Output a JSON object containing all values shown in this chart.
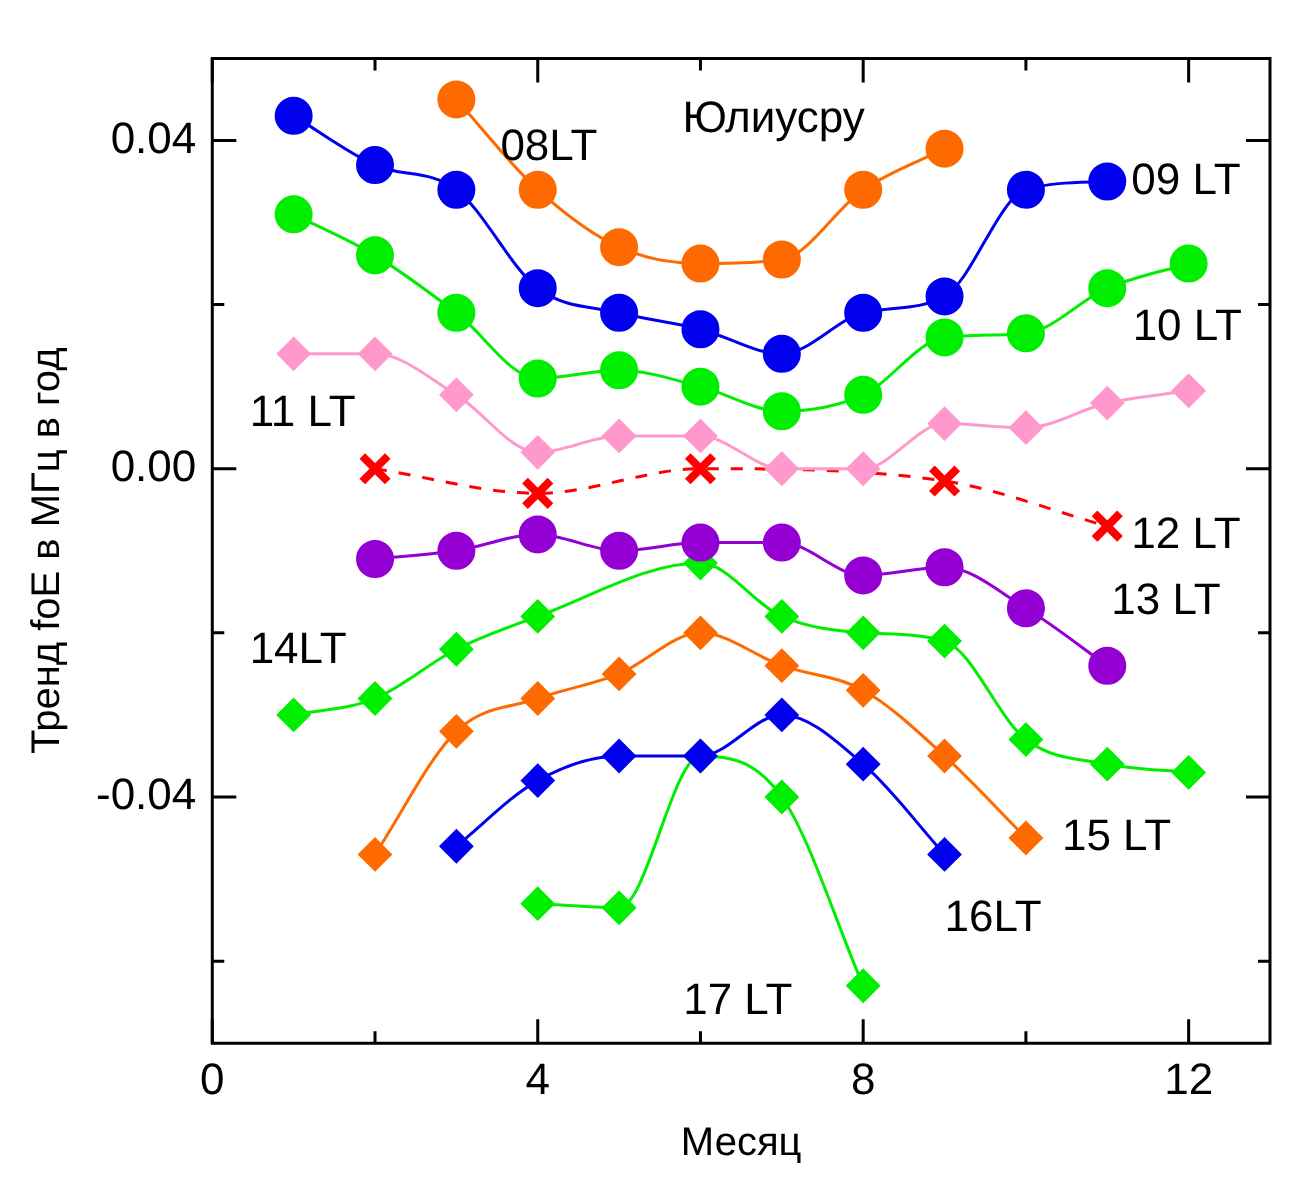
{
  "chart_data": {
    "type": "line",
    "xlabel": "Месяц",
    "ylabel": "Тренд foE в МГц в год",
    "xlim": [
      0,
      13
    ],
    "xticks": [
      0,
      {
        "value": 2,
        "label": null
      },
      4,
      {
        "value": 6,
        "label": null
      },
      8,
      {
        "value": 10,
        "label": null
      },
      12
    ],
    "ylim": [
      -0.07,
      0.05
    ],
    "yticks": [
      {
        "value": -0.06,
        "label": null
      },
      -0.04,
      {
        "value": -0.02,
        "label": null
      },
      {
        "value": 0,
        "label": "0.00"
      },
      {
        "value": 0.02,
        "label": null
      },
      0.04
    ],
    "grid": false,
    "legend": false,
    "annotations": [
      "Юлиусру"
    ],
    "series": [
      {
        "name": "08LT",
        "color": "#ff6a00",
        "marker": "circle",
        "x": [
          3,
          4,
          5,
          6,
          7,
          8,
          9
        ],
        "values": [
          0.045,
          0.034,
          0.027,
          0.025,
          0.0255,
          0.034,
          0.039
        ]
      },
      {
        "name": "09 LT",
        "color": "#0000ee",
        "marker": "circle",
        "x": [
          1,
          2,
          3,
          4,
          5,
          6,
          7,
          8,
          9,
          10,
          11
        ],
        "values": [
          0.043,
          0.037,
          0.034,
          0.022,
          0.019,
          0.017,
          0.014,
          0.019,
          0.021,
          0.034,
          0.035
        ]
      },
      {
        "name": "10 LT",
        "color": "#00ee00",
        "marker": "circle",
        "x": [
          1,
          2,
          3,
          4,
          5,
          6,
          7,
          8,
          9,
          10,
          11,
          12
        ],
        "values": [
          0.031,
          0.026,
          0.019,
          0.011,
          0.012,
          0.01,
          0.007,
          0.009,
          0.016,
          0.0165,
          0.022,
          0.025
        ]
      },
      {
        "name": "11 LT",
        "color": "#ff99cc",
        "marker": "diamond",
        "x": [
          1,
          2,
          3,
          4,
          5,
          6,
          7,
          8,
          9,
          10,
          11,
          12
        ],
        "values": [
          0.014,
          0.014,
          0.009,
          0.002,
          0.004,
          0.004,
          0.0,
          0.0,
          0.0055,
          0.005,
          0.008,
          0.0095
        ]
      },
      {
        "name": "12 LT",
        "color": "#ff0000",
        "marker": "cross",
        "line_style": "dashed",
        "x": [
          2,
          4,
          6,
          9,
          11
        ],
        "values": [
          0.0,
          -0.003,
          0.0,
          -0.0015,
          -0.007
        ]
      },
      {
        "name": "13 LT",
        "color": "#9400d3",
        "marker": "circle",
        "x": [
          2,
          3,
          4,
          5,
          6,
          7,
          8,
          9,
          10,
          11
        ],
        "values": [
          -0.011,
          -0.01,
          -0.008,
          -0.01,
          -0.009,
          -0.009,
          -0.013,
          -0.012,
          -0.017,
          -0.024
        ]
      },
      {
        "name": "14LT",
        "color": "#00ee00",
        "marker": "diamond",
        "x": [
          1,
          2,
          3,
          4,
          6,
          7,
          8,
          9,
          10,
          11,
          12
        ],
        "values": [
          -0.03,
          -0.028,
          -0.022,
          -0.018,
          -0.0115,
          -0.018,
          -0.02,
          -0.021,
          -0.033,
          -0.036,
          -0.037
        ]
      },
      {
        "name": "15 LT",
        "color": "#ff6a00",
        "marker": "diamond",
        "x": [
          2,
          3,
          4,
          5,
          6,
          7,
          8,
          9,
          10
        ],
        "values": [
          -0.047,
          -0.032,
          -0.028,
          -0.025,
          -0.02,
          -0.024,
          -0.027,
          -0.035,
          -0.045
        ]
      },
      {
        "name": "16LT",
        "color": "#0000ee",
        "marker": "diamond",
        "x": [
          3,
          4,
          5,
          6,
          7,
          8,
          9
        ],
        "values": [
          -0.046,
          -0.038,
          -0.035,
          -0.035,
          -0.03,
          -0.036,
          -0.047
        ]
      },
      {
        "name": "17 LT",
        "color": "#00ee00",
        "marker": "diamond",
        "x": [
          4,
          5,
          6,
          7,
          8
        ],
        "values": [
          -0.053,
          -0.0535,
          -0.035,
          -0.04,
          -0.063
        ]
      }
    ]
  }
}
